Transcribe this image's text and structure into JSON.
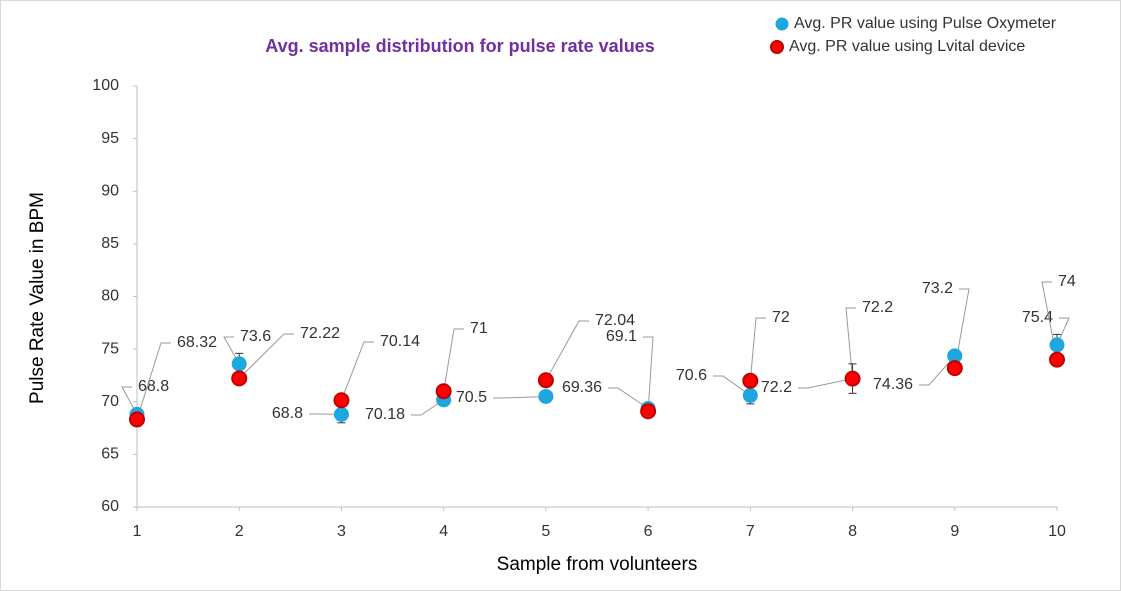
{
  "chart_data": {
    "type": "scatter",
    "title": "Avg. sample distribution for pulse rate values",
    "x_label": "Sample from volunteers",
    "y_label": "Pulse Rate Value in BPM",
    "x": [
      1,
      2,
      3,
      4,
      5,
      6,
      7,
      8,
      9,
      10
    ],
    "series": [
      {
        "name": "Avg. PR value using Pulse Oxymeter",
        "color": "#1ea6df",
        "values": [
          68.8,
          73.6,
          68.8,
          70.18,
          70.5,
          69.36,
          70.6,
          72.2,
          74.36,
          75.4
        ],
        "errors": [
          0.5,
          1,
          0.8,
          0.4,
          0.3,
          0.4,
          0.8,
          1.4,
          0.4,
          1
        ]
      },
      {
        "name": "Avg. PR value using Lvital device",
        "color": "#ff0000",
        "values": [
          68.32,
          72.22,
          70.14,
          71,
          72.04,
          69.1,
          72,
          72.2,
          73.2,
          74
        ]
      }
    ],
    "xlim": [
      1,
      10
    ],
    "xticks": [
      1,
      2,
      3,
      4,
      5,
      6,
      7,
      8,
      9,
      10
    ],
    "ylim": [
      60,
      100
    ],
    "yticks": [
      60,
      65,
      70,
      75,
      80,
      85,
      90,
      95,
      100
    ],
    "legend": "top-right"
  }
}
